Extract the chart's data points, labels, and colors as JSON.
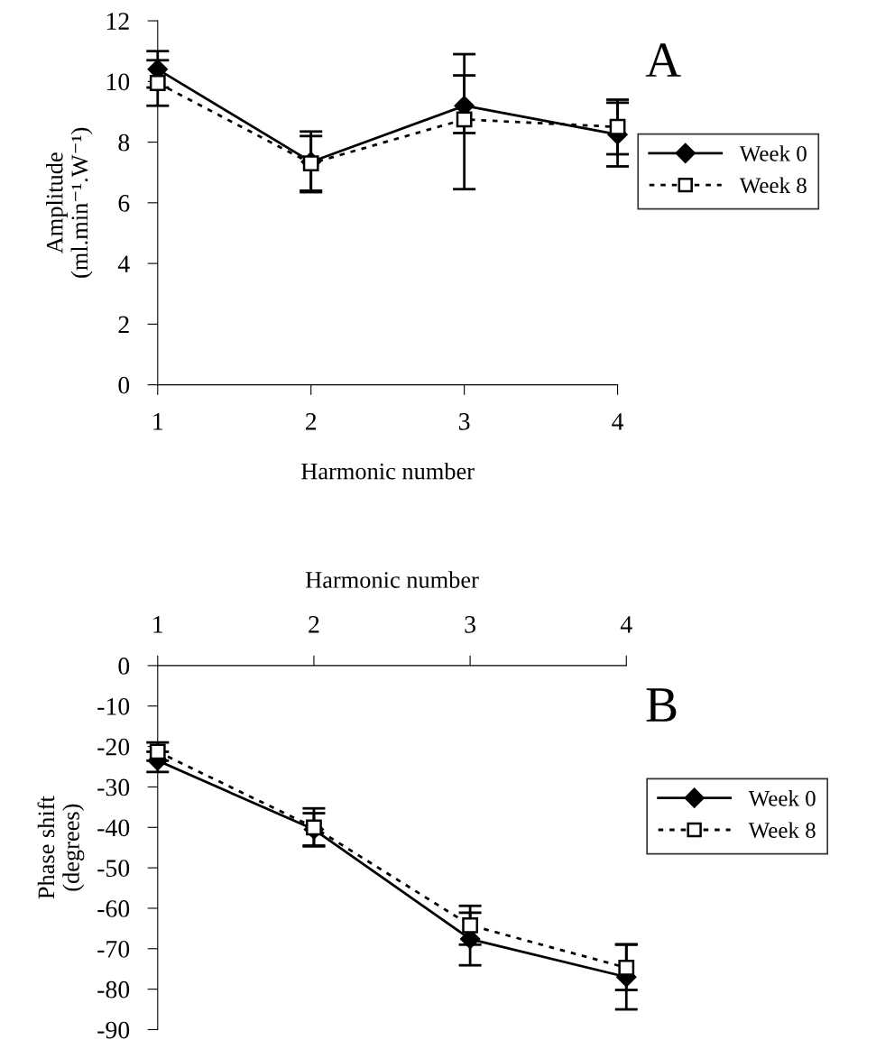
{
  "chart_data": [
    {
      "type": "line",
      "xlabel": "Harmonic number",
      "ylabel": "Amplitude\n(ml.min⁻¹.W⁻¹)",
      "annotations": [
        "A"
      ],
      "x": [
        1,
        2,
        3,
        4
      ],
      "xlim": [
        1,
        4
      ],
      "xticks": [
        1,
        2,
        3,
        4
      ],
      "ylim": [
        0,
        12
      ],
      "yticks": [
        0,
        2,
        4,
        6,
        8,
        10,
        12
      ],
      "grid": false,
      "legend": "right",
      "series": [
        {
          "name": "Week 0",
          "color": "#000000",
          "marker": "diamond",
          "line_style": "solid",
          "values": [
            10.4,
            7.35,
            9.2,
            8.25
          ],
          "errors": [
            [
              9.8,
              11.0
            ],
            [
              6.35,
              8.35
            ],
            [
              6.45,
              10.9
            ],
            [
              7.2,
              9.3
            ]
          ]
        },
        {
          "name": "Week 8",
          "color": "#000000",
          "marker": "square",
          "line_style": "dotted",
          "values": [
            9.95,
            7.3,
            8.75,
            8.5
          ],
          "errors": [
            [
              9.2,
              10.7
            ],
            [
              6.4,
              8.2
            ],
            [
              8.3,
              10.2
            ],
            [
              7.6,
              9.4
            ]
          ]
        }
      ]
    },
    {
      "type": "line",
      "xlabel": "Harmonic number",
      "ylabel": "Phase shift\n(degrees)",
      "annotations": [
        "B"
      ],
      "x": [
        1,
        2,
        3,
        4
      ],
      "xlim": [
        1,
        4
      ],
      "xticks": [
        1,
        2,
        3,
        4
      ],
      "ylim": [
        -90,
        0
      ],
      "yticks": [
        -90,
        -80,
        -70,
        -60,
        -50,
        -40,
        -30,
        -20,
        -10,
        0
      ],
      "grid": false,
      "legend": "right",
      "series": [
        {
          "name": "Week 0",
          "color": "#000000",
          "marker": "diamond",
          "line_style": "solid",
          "values": [
            -23.5,
            -40.5,
            -67.6,
            -77
          ],
          "errors": [
            [
              -26.3,
              -23.5
            ],
            [
              -44.5,
              -36.5
            ],
            [
              -74.1,
              -61.1
            ],
            [
              -85,
              -69
            ]
          ]
        },
        {
          "name": "Week 8",
          "color": "#000000",
          "marker": "square",
          "line_style": "dotted",
          "values": [
            -21.3,
            -40,
            -64.2,
            -74.7
          ],
          "errors": [
            [
              -21.3,
              -19
            ],
            [
              -44.7,
              -35.3
            ],
            [
              -69,
              -59.4
            ],
            [
              -80.2,
              -68.9
            ]
          ]
        }
      ]
    }
  ]
}
